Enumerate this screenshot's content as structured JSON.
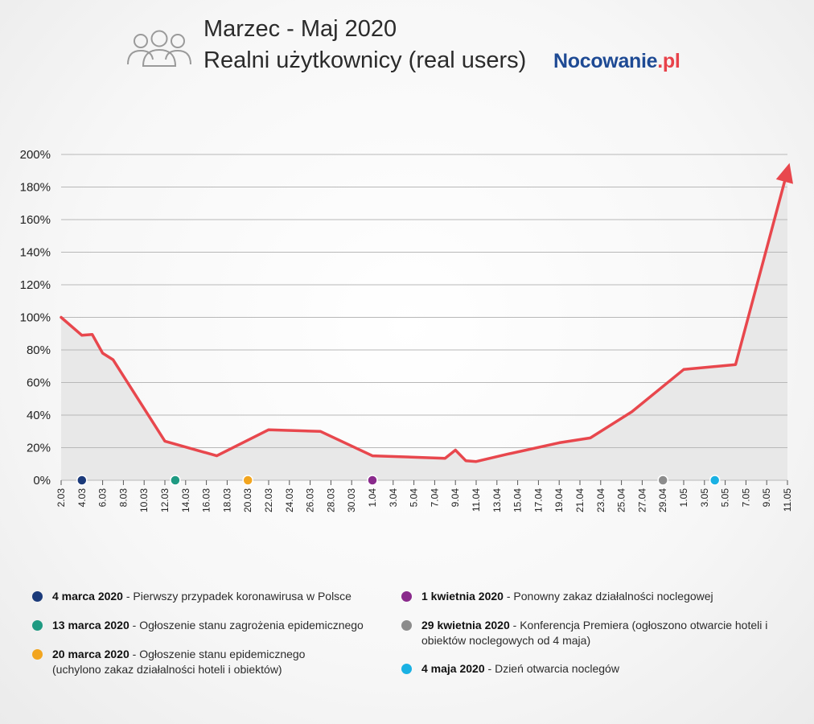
{
  "header": {
    "title": "Marzec - Maj 2020",
    "subtitle": "Realni użytkownicy (real users)",
    "brand_main": "Nocowanie",
    "brand_accent": ".pl",
    "icon": "users-icon"
  },
  "colors": {
    "line": "#e8474d",
    "area": "#e8e8e8",
    "grid": "#b8b8b8",
    "brand_blue": "#1e4a94",
    "brand_red": "#e8424a"
  },
  "chart_data": {
    "type": "line",
    "title": "Realni użytkownicy (real users)",
    "xlabel": "",
    "ylabel": "",
    "ylim": [
      0,
      200
    ],
    "yticks": [
      0,
      20,
      40,
      60,
      80,
      100,
      120,
      140,
      160,
      180,
      200
    ],
    "ytick_labels": [
      "0%",
      "20%",
      "40%",
      "60%",
      "80%",
      "100%",
      "120%",
      "140%",
      "160%",
      "180%",
      "200%"
    ],
    "x_start_label": "2.03",
    "x_tick_labels": [
      "2.03",
      "4.03",
      "6.03",
      "8.03",
      "10.03",
      "12.03",
      "14.03",
      "16.03",
      "18.03",
      "20.03",
      "22.03",
      "24.03",
      "26.03",
      "28.03",
      "30.03",
      "1.04",
      "3.04",
      "5.04",
      "7.04",
      "9.04",
      "11.04",
      "13.04",
      "15.04",
      "17.04",
      "19.04",
      "21.04",
      "23.04",
      "25.04",
      "27.04",
      "29.04",
      "1.05",
      "3.05",
      "5.05",
      "7.05",
      "9.05",
      "11.05"
    ],
    "x_tick_day_index": [
      0,
      2,
      4,
      6,
      8,
      10,
      12,
      14,
      16,
      18,
      20,
      22,
      24,
      26,
      28,
      30,
      32,
      34,
      36,
      38,
      40,
      42,
      44,
      46,
      48,
      50,
      52,
      54,
      56,
      58,
      60,
      62,
      64,
      66,
      68,
      70
    ],
    "x_range_days": [
      0,
      70
    ],
    "series": [
      {
        "name": "Realni użytkownicy",
        "points": [
          [
            0,
            100
          ],
          [
            2,
            89
          ],
          [
            3,
            89.5
          ],
          [
            4,
            78
          ],
          [
            5,
            74
          ],
          [
            10,
            24
          ],
          [
            15,
            15
          ],
          [
            20,
            31
          ],
          [
            25,
            30
          ],
          [
            30,
            15
          ],
          [
            37,
            13.5
          ],
          [
            38,
            18.5
          ],
          [
            39,
            12
          ],
          [
            40,
            11.5
          ],
          [
            43,
            16
          ],
          [
            48,
            23
          ],
          [
            51,
            26
          ],
          [
            55,
            42
          ],
          [
            60,
            68
          ],
          [
            65,
            71
          ],
          [
            70,
            190
          ]
        ],
        "arrow_end": true
      }
    ],
    "events": [
      {
        "day": 2,
        "color": "#1b3a7a",
        "date": "4 marca 2020",
        "text": "Pierwszy przypadek koronawirusa w Polsce"
      },
      {
        "day": 11,
        "color": "#1f9a82",
        "date": "13 marca 2020",
        "text": "Ogłoszenie stanu zagrożenia epidemicznego"
      },
      {
        "day": 18,
        "color": "#f2a51f",
        "date": "20 marca 2020",
        "text": "Ogłoszenie stanu epidemicznego (uchylono zakaz działalności hoteli i obiektów)"
      },
      {
        "day": 30,
        "color": "#8a2a8c",
        "date": "1 kwietnia 2020",
        "text": "Ponowny zakaz działalności noclegowej"
      },
      {
        "day": 58,
        "color": "#8c8c8c",
        "date": "29 kwietnia 2020",
        "text": "Konferencja Premiera (ogłoszono otwarcie hoteli i obiektów noclegowych od 4 maja)"
      },
      {
        "day": 63,
        "color": "#1ab1e3",
        "date": "4 maja 2020",
        "text": "Dzień otwarcia noclegów"
      }
    ]
  },
  "legend_separator": " - "
}
